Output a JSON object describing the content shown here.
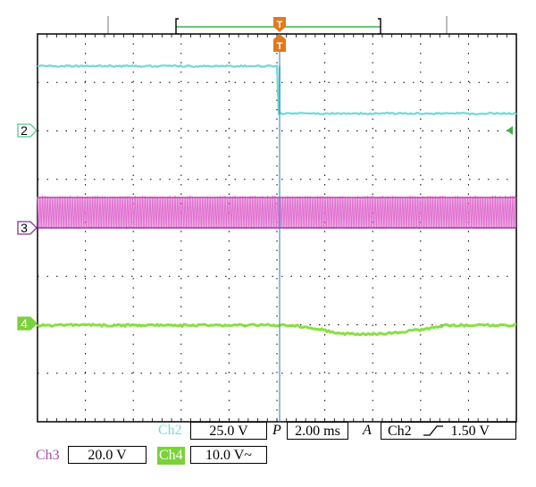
{
  "scope": {
    "trigger_marker_top": "T",
    "trigger_marker_bottom": "T",
    "channels": [
      {
        "id": "2",
        "label": "Ch2",
        "scale": "25.0 V",
        "color": "#70d8d8",
        "marker_color": "#5cc48e"
      },
      {
        "id": "3",
        "label": "Ch3",
        "scale": "20.0 V",
        "color": "#e070d0",
        "marker_color": "#8a2c9e"
      },
      {
        "id": "4",
        "label": "Ch4",
        "scale": "10.0 V~",
        "color": "#88e040",
        "marker_color": "#7ad23a"
      }
    ],
    "timebase": {
      "prefix": "P",
      "value": "2.00 ms"
    },
    "trigger": {
      "prefix": "A",
      "source": "Ch2",
      "slope_icon": "rising-edge",
      "level": "1.50 V"
    },
    "colors": {
      "trigger": "#e07a1e",
      "window": "#3cb04a",
      "grid": "#000000"
    }
  }
}
